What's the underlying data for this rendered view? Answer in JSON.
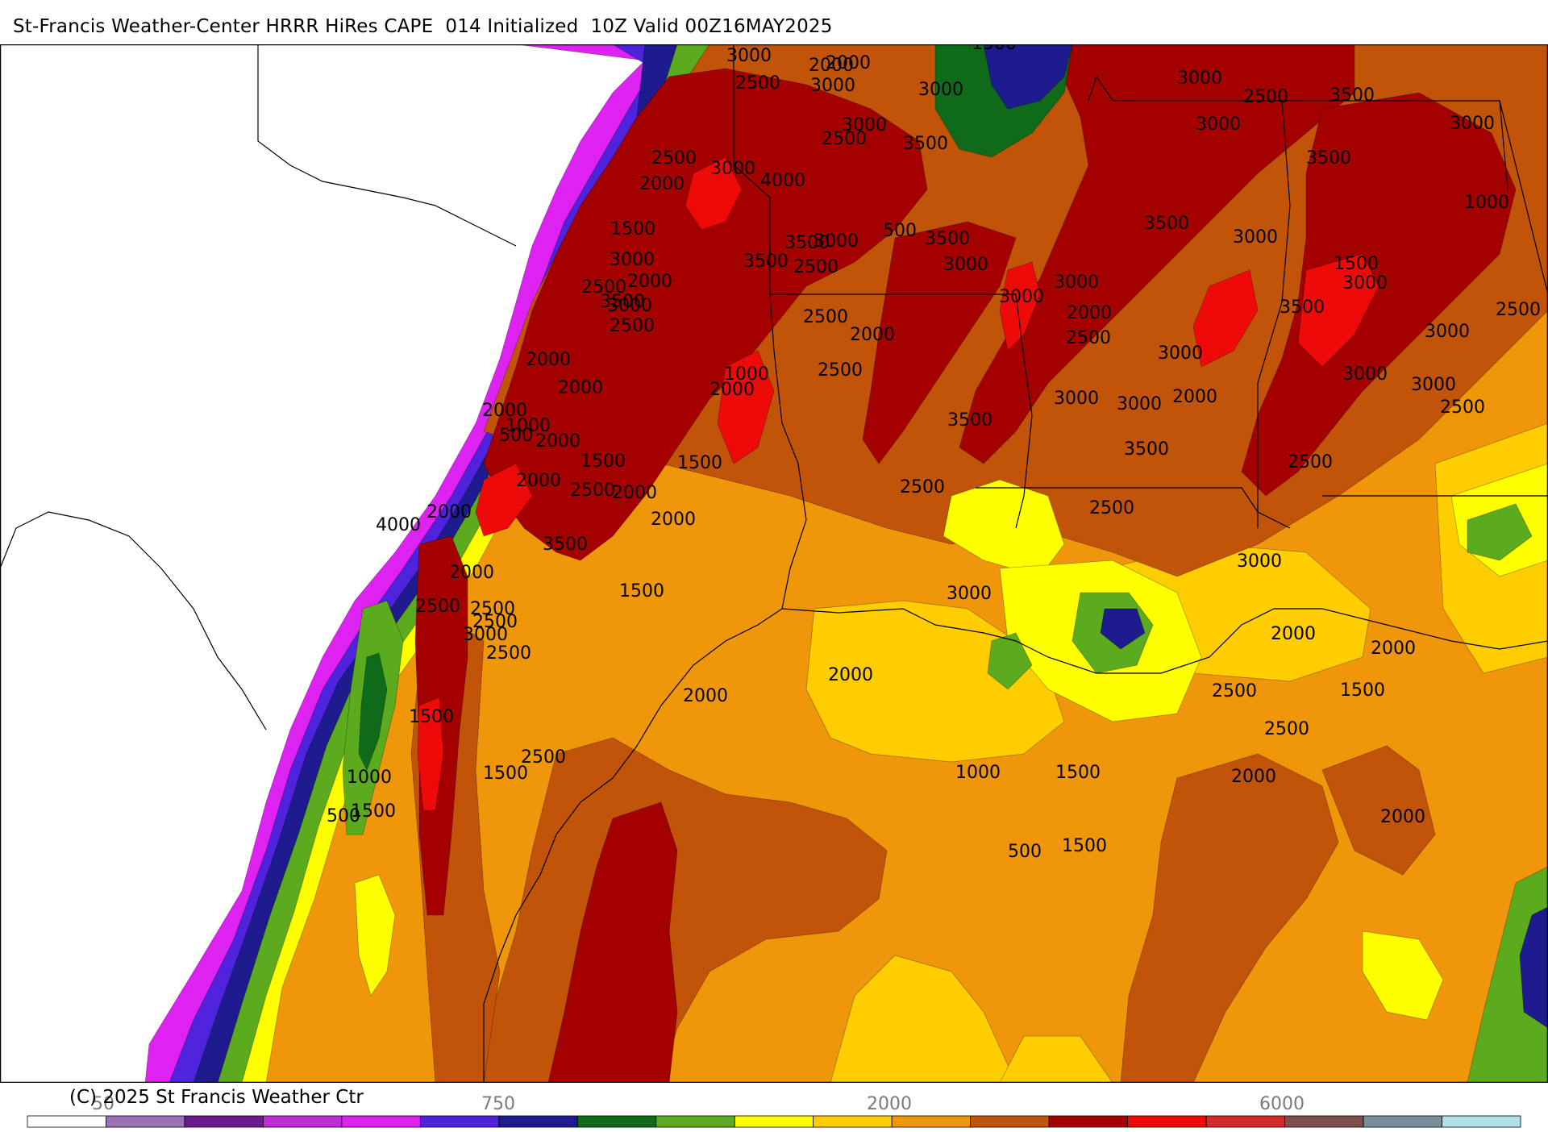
{
  "title": "St-Francis Weather-Center HRRR HiRes CAPE  014 Initialized  10Z Valid 00Z16MAY2025",
  "copyright": "(C) 2025 St Francis Weather Ctr",
  "colors": {
    "c0": "#ffffff",
    "c50": "#9b71b7",
    "c100": "#6a1a8c",
    "c250": "#c22bd8",
    "c500": "#dd22f2",
    "c750": "#4f22dc",
    "c1000": "#1d1b8e",
    "c1250": "#0f6b1a",
    "c1500": "#5cab1e",
    "c1750": "#ffff00",
    "c2000": "#ffcd00",
    "c2250": "#f0960a",
    "c2500": "#c2540a",
    "c3000": "#a50000",
    "c3500": "#ef0a0a",
    "c4000": "#d42a2a",
    "c4500": "#7d4f4f",
    "c5000": "#7b8e9a",
    "c6000": "#b0e0e8"
  },
  "colorbar": {
    "tick_labels": [
      "50",
      "750",
      "2000",
      "6000"
    ],
    "swatches": [
      "#ffffff",
      "#9b71b7",
      "#6a1a8c",
      "#c22bd8",
      "#dd22f2",
      "#4f22dc",
      "#1d1b8e",
      "#0f6b1a",
      "#5cab1e",
      "#ffff00",
      "#ffcd00",
      "#f0960a",
      "#c2540a",
      "#a50000",
      "#ef0a0a",
      "#d42a2a",
      "#7d4f4f",
      "#7b8e9a",
      "#b0e0e8"
    ]
  },
  "contour_labels": [
    "1000",
    "1500",
    "3000",
    "2000",
    "2500",
    "3000",
    "2000",
    "3000",
    "2500",
    "3500",
    "3000",
    "3000",
    "3500",
    "1000",
    "3500",
    "3000",
    "1500",
    "3000",
    "3500",
    "2500",
    "3000",
    "3000",
    "3000",
    "2500",
    "3000",
    "3500",
    "3000",
    "4000",
    "500",
    "3500",
    "3500",
    "3000",
    "3000",
    "3000",
    "2000",
    "2500",
    "3000",
    "2000",
    "3000",
    "3000",
    "3500",
    "3500",
    "2500",
    "2500",
    "3000",
    "2500",
    "3000",
    "2000",
    "3000",
    "3500",
    "2500",
    "3000",
    "2500",
    "2000",
    "2500",
    "1000",
    "2000",
    "2500",
    "2500",
    "2000",
    "1500",
    "3000",
    "2500",
    "2000",
    "3500",
    "3000",
    "2500",
    "2000",
    "2000",
    "2000",
    "1000",
    "500",
    "2000",
    "1500",
    "1500",
    "2000",
    "2500",
    "2000",
    "2000",
    "2000",
    "4000",
    "2000",
    "3500",
    "2500",
    "2500",
    "2500",
    "3000",
    "2500",
    "1500",
    "2000",
    "2000",
    "2000",
    "2000",
    "1500",
    "2500",
    "2500",
    "2000",
    "2000",
    "1000",
    "1500",
    "500",
    "1500"
  ]
}
